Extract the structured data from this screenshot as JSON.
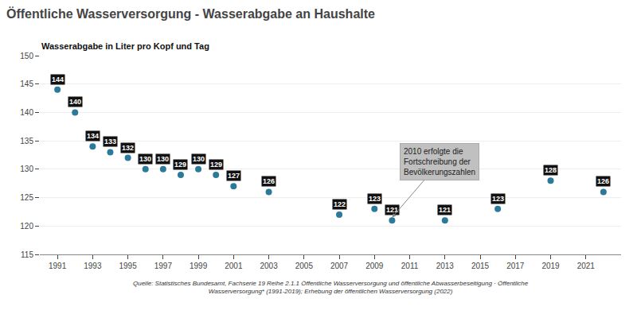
{
  "chart_data": {
    "type": "scatter",
    "title": "Öffentliche Wasserversorgung - Wasserabgabe an Haushalte",
    "ylabel": "Wasserabgabe in Liter pro Kopf und Tag",
    "source": "Quelle: Statistisches Bundesamt, Fachserie 19 Reihe 2.1.1 Öffentliche Wasserversorgung und öffentliche Abwasserbeseitigung · Öffentliche\nWasserversorgung* (1991-2019); Erhebung der öffentlichen Wasserversorgung (2022)",
    "x": [
      1991,
      1992,
      1993,
      1994,
      1995,
      1996,
      1997,
      1998,
      1999,
      2000,
      2001,
      2003,
      2007,
      2009,
      2010,
      2013,
      2016,
      2019,
      2022
    ],
    "values": [
      144,
      140,
      134,
      133,
      132,
      130,
      130,
      129,
      130,
      129,
      127,
      126,
      122,
      123,
      121,
      121,
      123,
      128,
      126
    ],
    "color": "#2b7a9a",
    "data_labels": true,
    "annotations": [
      {
        "text": "2010 erfolgte die\nFortschreibung der\nBevölkerungszahlen",
        "x": 2010,
        "y": 121.5
      }
    ],
    "xlim": [
      1990.0,
      2023.0
    ],
    "xticks": [
      1991,
      1993,
      1995,
      1997,
      1999,
      2001,
      2003,
      2005,
      2007,
      2009,
      2011,
      2013,
      2015,
      2017,
      2019,
      2021
    ],
    "ylim": [
      115,
      150
    ],
    "yticks": [
      115,
      120,
      125,
      130,
      135,
      140,
      145,
      150
    ],
    "grid": "y"
  }
}
